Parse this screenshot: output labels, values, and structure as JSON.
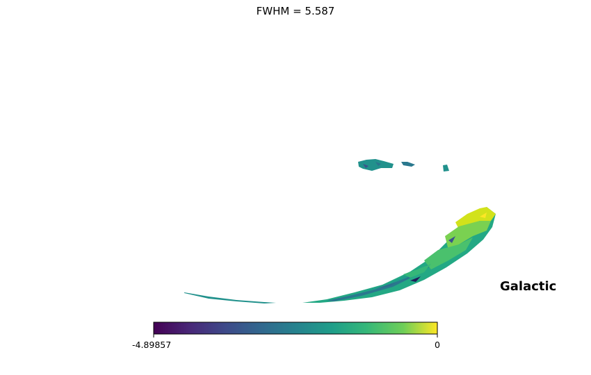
{
  "chart_data": {
    "type": "heatmap",
    "title": "FWHM = 5.587",
    "coordinate_label": "Galactic",
    "colormap": "viridis",
    "colorbar": {
      "min": -4.89857,
      "max": 0,
      "min_label": "-4.89857",
      "max_label": "0",
      "orientation": "horizontal"
    },
    "colors": [
      "#440154",
      "#3b528b",
      "#21918c",
      "#5ec962",
      "#fde725"
    ]
  }
}
